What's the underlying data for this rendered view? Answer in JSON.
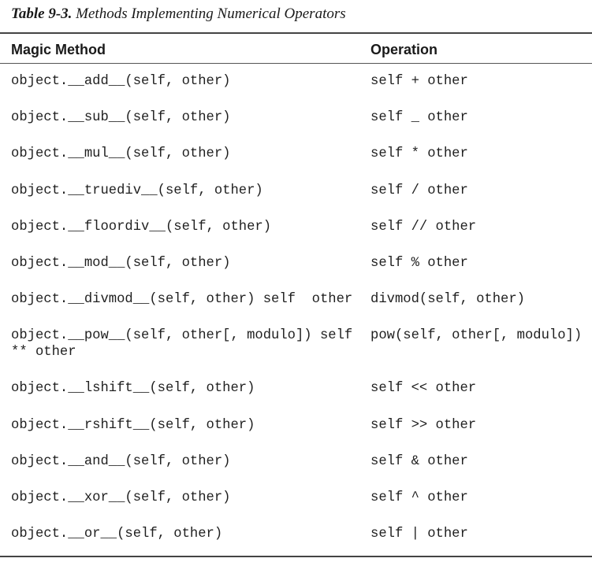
{
  "caption": {
    "label": "Table 9-3.",
    "title": "Methods Implementing Numerical Operators"
  },
  "table": {
    "headers": [
      "Magic Method",
      "Operation"
    ],
    "rows": [
      {
        "method": "object.__add__(self, other)",
        "operation": "self + other"
      },
      {
        "method": "object.__sub__(self, other)",
        "operation": "self _ other"
      },
      {
        "method": "object.__mul__(self, other)",
        "operation": "self * other"
      },
      {
        "method": "object.__truediv__(self, other)",
        "operation": "self / other"
      },
      {
        "method": "object.__floordiv__(self, other)",
        "operation": "self // other"
      },
      {
        "method": "object.__mod__(self, other)",
        "operation": "self % other"
      },
      {
        "method": "object.__divmod__(self, other) self  other",
        "operation": "divmod(self, other)"
      },
      {
        "method": "object.__pow__(self, other[, modulo]) self ** other",
        "operation": "pow(self, other[, modulo])"
      },
      {
        "method": "object.__lshift__(self, other)",
        "operation": "self << other"
      },
      {
        "method": "object.__rshift__(self, other)",
        "operation": "self >> other"
      },
      {
        "method": "object.__and__(self, other)",
        "operation": "self & other"
      },
      {
        "method": "object.__xor__(self, other)",
        "operation": "self ^ other"
      },
      {
        "method": "object.__or__(self, other)",
        "operation": "self | other"
      }
    ]
  }
}
